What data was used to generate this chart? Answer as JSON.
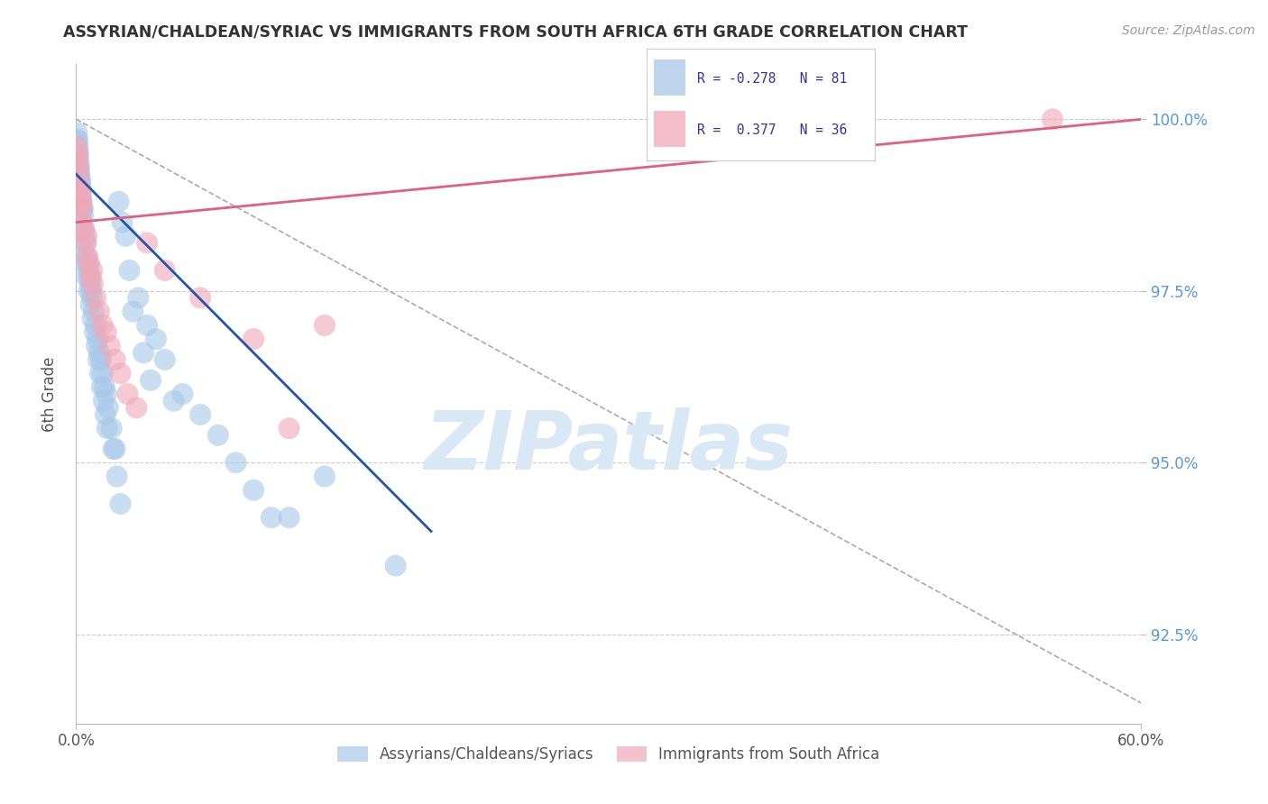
{
  "title": "ASSYRIAN/CHALDEAN/SYRIAC VS IMMIGRANTS FROM SOUTH AFRICA 6TH GRADE CORRELATION CHART",
  "source": "Source: ZipAtlas.com",
  "ylabel": "6th Grade",
  "legend_label1": "Assyrians/Chaldeans/Syriacs",
  "legend_label2": "Immigrants from South Africa",
  "R1": -0.278,
  "N1": 81,
  "R2": 0.377,
  "N2": 36,
  "color_blue": "#A8C8E8",
  "color_pink": "#F0A8B8",
  "line_color_blue": "#2255AA",
  "line_color_pink": "#E06080",
  "xmin": 0.0,
  "xmax": 60.0,
  "ymin": 91.2,
  "ymax": 100.8,
  "ytick_positions": [
    92.5,
    95.0,
    97.5,
    100.0
  ],
  "xtick_positions": [
    0.0,
    60.0
  ],
  "xtick_labels": [
    "0.0%",
    "60.0%"
  ],
  "blue_line_x0": 0.0,
  "blue_line_y0": 99.2,
  "blue_line_x1": 20.0,
  "blue_line_y1": 94.0,
  "pink_line_x0": 0.0,
  "pink_line_y0": 98.5,
  "pink_line_x1": 60.0,
  "pink_line_y1": 100.0,
  "diag_x0": 0.0,
  "diag_y0": 100.0,
  "diag_x1": 60.0,
  "diag_y1": 91.5,
  "blue_scatter_x": [
    0.05,
    0.08,
    0.1,
    0.12,
    0.15,
    0.18,
    0.2,
    0.22,
    0.25,
    0.28,
    0.3,
    0.32,
    0.35,
    0.38,
    0.4,
    0.45,
    0.5,
    0.55,
    0.6,
    0.65,
    0.7,
    0.75,
    0.8,
    0.85,
    0.9,
    1.0,
    1.1,
    1.2,
    1.3,
    1.4,
    1.5,
    1.6,
    1.7,
    1.8,
    2.0,
    2.2,
    2.4,
    2.6,
    2.8,
    3.0,
    3.5,
    4.0,
    4.5,
    5.0,
    6.0,
    7.0,
    8.0,
    9.0,
    10.0,
    12.0,
    14.0,
    0.06,
    0.09,
    0.13,
    0.16,
    0.19,
    0.23,
    0.27,
    0.33,
    0.42,
    0.52,
    0.62,
    0.72,
    0.82,
    0.92,
    1.05,
    1.15,
    1.25,
    1.35,
    1.45,
    1.55,
    1.65,
    1.75,
    2.1,
    2.3,
    2.5,
    3.2,
    3.8,
    4.2,
    5.5,
    11.0,
    18.0
  ],
  "blue_scatter_y": [
    99.8,
    99.7,
    99.6,
    99.5,
    99.4,
    99.3,
    99.2,
    99.1,
    99.1,
    99.0,
    98.9,
    98.8,
    98.7,
    98.7,
    98.6,
    98.4,
    98.3,
    98.2,
    98.0,
    97.9,
    97.8,
    97.7,
    97.6,
    97.5,
    97.4,
    97.2,
    97.0,
    96.8,
    96.6,
    96.5,
    96.3,
    96.1,
    96.0,
    95.8,
    95.5,
    95.2,
    98.8,
    98.5,
    98.3,
    97.8,
    97.4,
    97.0,
    96.8,
    96.5,
    96.0,
    95.7,
    95.4,
    95.0,
    94.6,
    94.2,
    94.8,
    99.7,
    99.5,
    99.3,
    99.1,
    99.0,
    98.8,
    98.6,
    98.4,
    98.1,
    97.9,
    97.7,
    97.5,
    97.3,
    97.1,
    96.9,
    96.7,
    96.5,
    96.3,
    96.1,
    95.9,
    95.7,
    95.5,
    95.2,
    94.8,
    94.4,
    97.2,
    96.6,
    96.2,
    95.9,
    94.2,
    93.5
  ],
  "pink_scatter_x": [
    0.05,
    0.08,
    0.12,
    0.15,
    0.18,
    0.22,
    0.25,
    0.28,
    0.35,
    0.45,
    0.55,
    0.65,
    0.75,
    0.85,
    0.95,
    1.1,
    1.3,
    1.5,
    1.7,
    1.9,
    2.2,
    2.5,
    2.9,
    3.4,
    4.0,
    5.0,
    7.0,
    10.0,
    14.0,
    55.0,
    0.1,
    0.2,
    0.3,
    0.6,
    0.9,
    12.0
  ],
  "pink_scatter_y": [
    99.6,
    99.4,
    99.3,
    99.2,
    99.0,
    98.9,
    98.8,
    98.7,
    98.5,
    98.4,
    98.2,
    98.0,
    97.9,
    97.7,
    97.6,
    97.4,
    97.2,
    97.0,
    96.9,
    96.7,
    96.5,
    96.3,
    96.0,
    95.8,
    98.2,
    97.8,
    97.4,
    96.8,
    97.0,
    100.0,
    99.5,
    99.0,
    98.8,
    98.3,
    97.8,
    95.5
  ],
  "watermark_text": "ZIPatlas",
  "watermark_color": "#D8E8F5",
  "background_color": "#FFFFFF"
}
